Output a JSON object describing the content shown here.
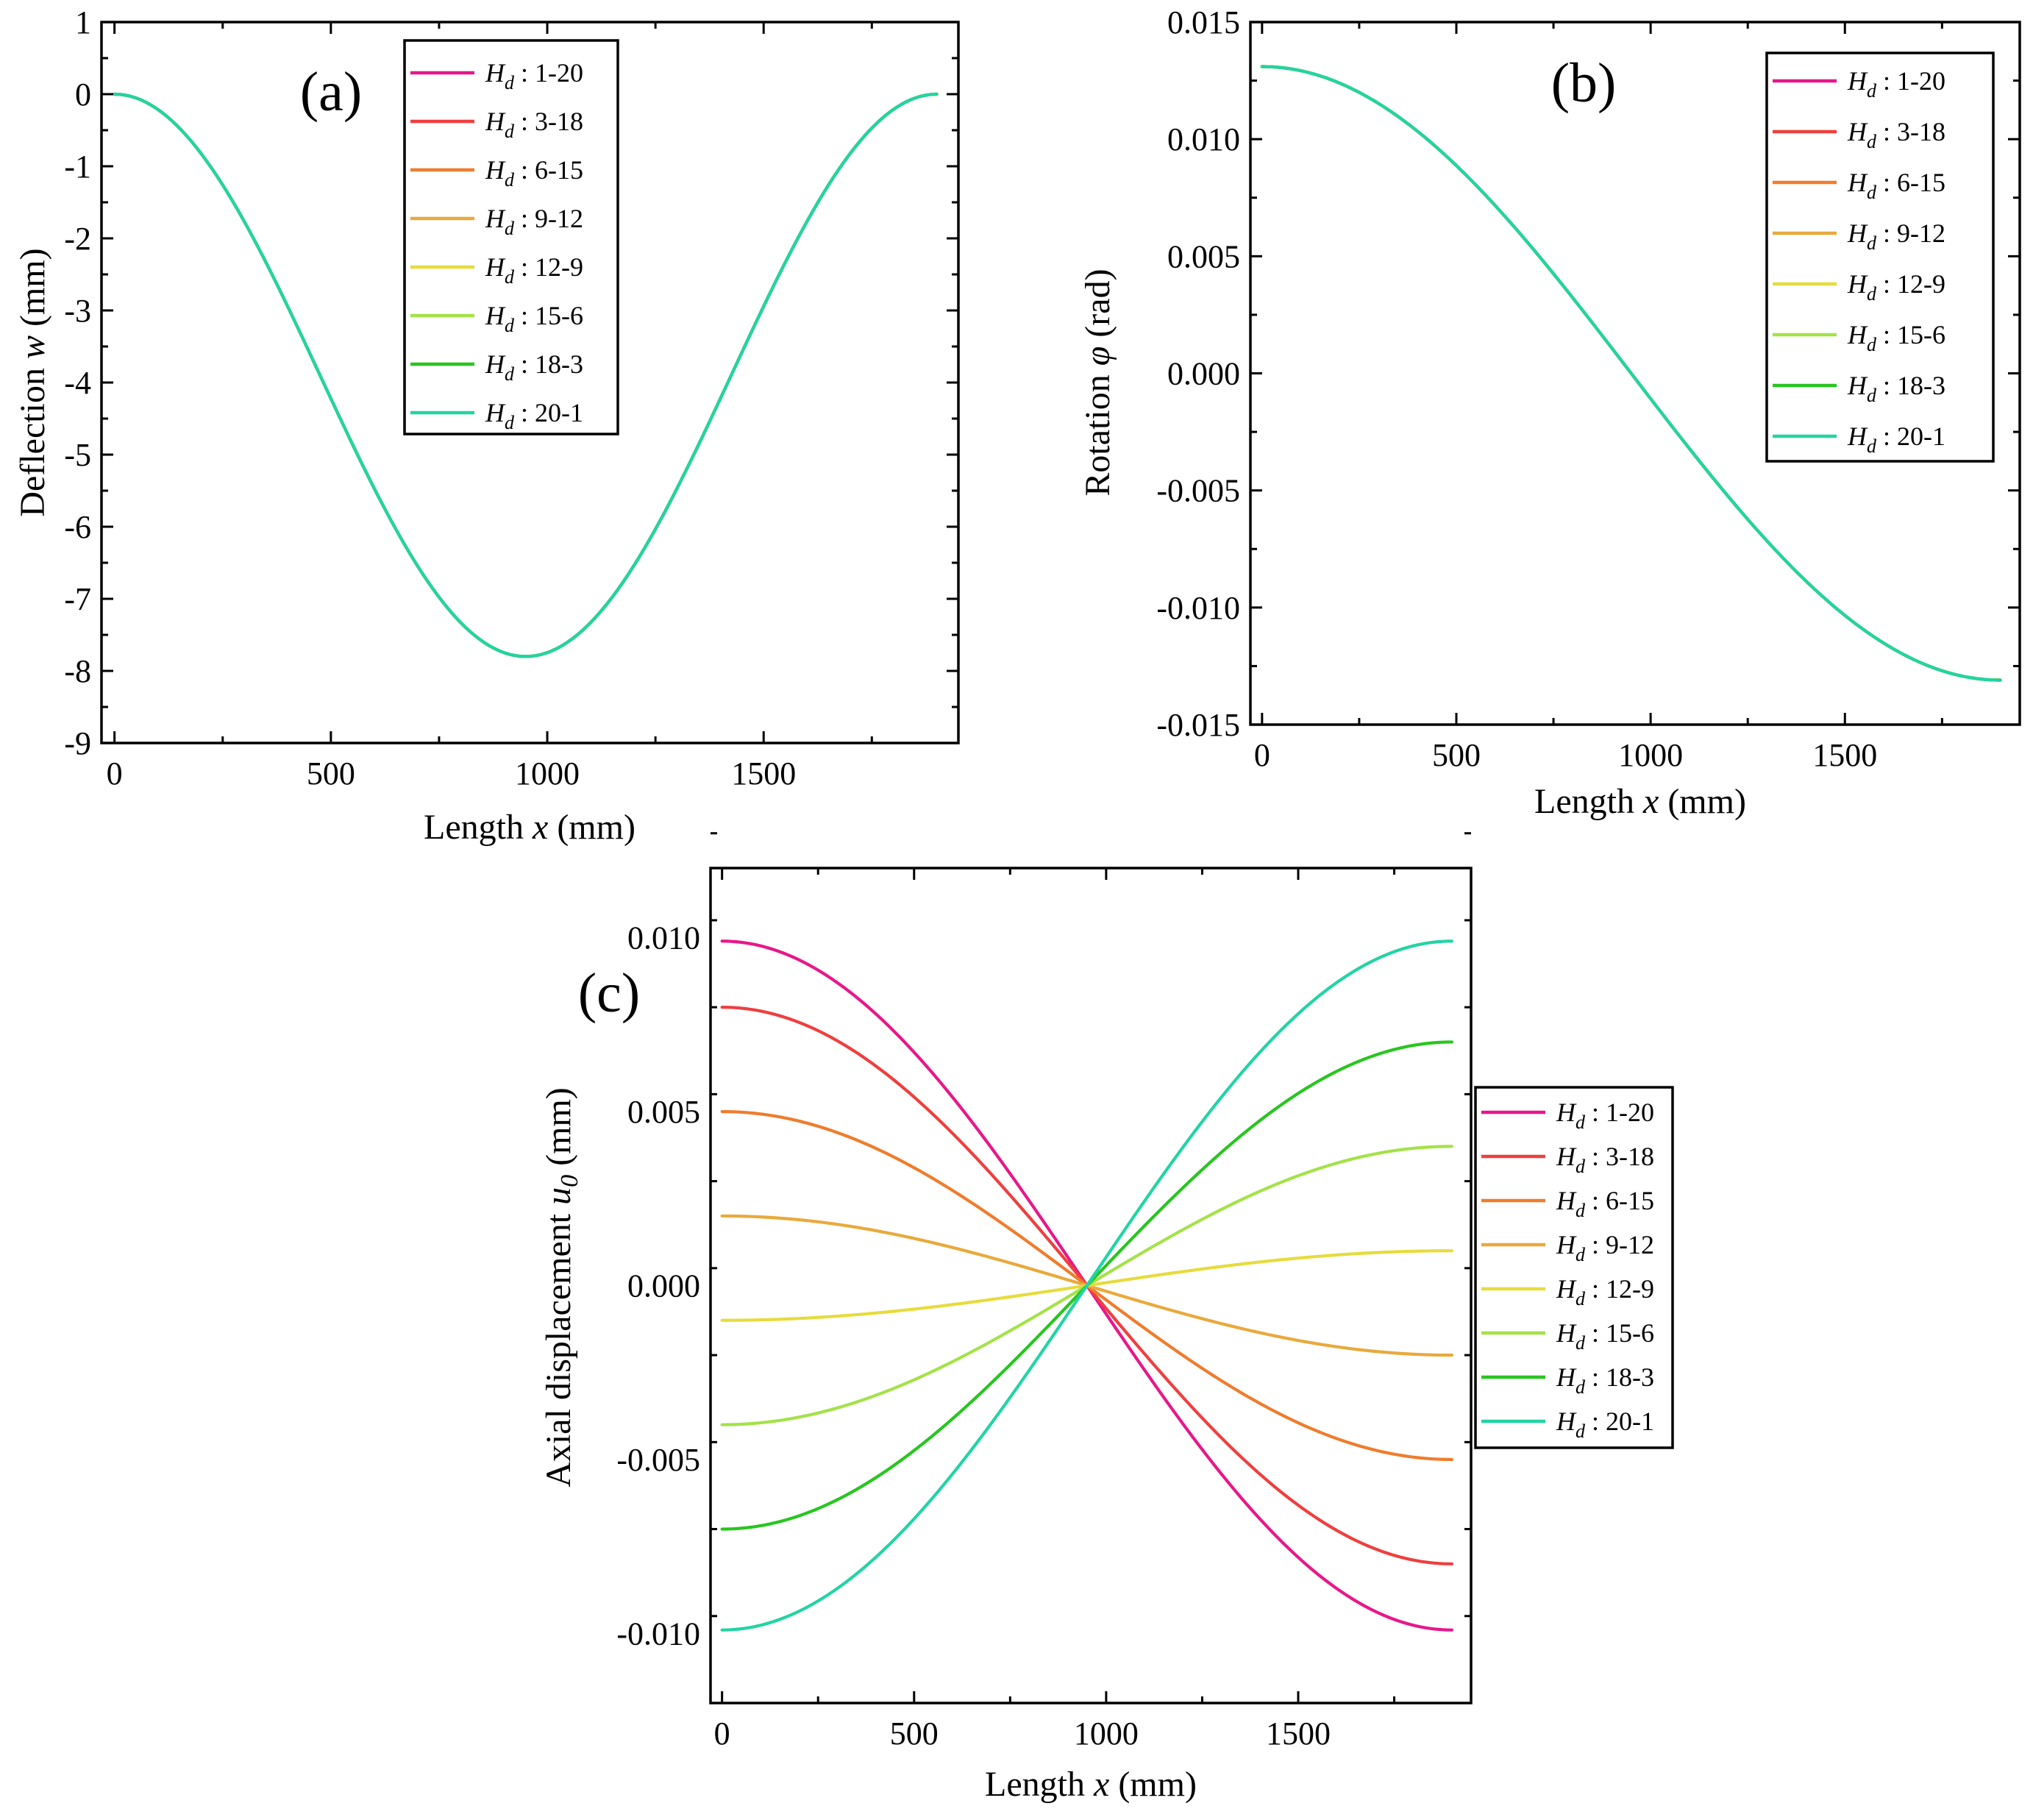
{
  "series_colors": [
    "#e8178a",
    "#ef3f3f",
    "#ee7d2d",
    "#e9a93b",
    "#e6dc3c",
    "#a4e248",
    "#27c61f",
    "#22d4a4"
  ],
  "chart_data": [
    {
      "panel": "(a)",
      "type": "line",
      "xlabel_prefix": "Length ",
      "xlabel_var": "x",
      "xlabel_suffix": " (mm)",
      "ylabel_prefix": "Deflection ",
      "ylabel_var": "w",
      "ylabel_suffix": " (mm)",
      "xlim": [
        -30,
        1950
      ],
      "ylim": [
        -9,
        1
      ],
      "xticks": [
        0,
        500,
        1000,
        1500
      ],
      "xtick_labels": [
        "0",
        "500",
        "1000",
        "1500"
      ],
      "yticks": [
        1,
        0,
        -1,
        -2,
        -3,
        -4,
        -5,
        -6,
        -7,
        -8,
        -9
      ],
      "ytick_labels": [
        "1",
        "0",
        "-1",
        "-2",
        "-3",
        "-4",
        "-5",
        "-6",
        "-7",
        "-8",
        "-9"
      ],
      "legend_position": "top-center",
      "shape": "deflection",
      "x_max": 1900,
      "series": [
        {
          "name_var": "H",
          "name_sub": "d",
          "name_value": " : 1-20",
          "peak": -7.8
        },
        {
          "name_var": "H",
          "name_sub": "d",
          "name_value": " : 3-18",
          "peak": -7.8
        },
        {
          "name_var": "H",
          "name_sub": "d",
          "name_value": " : 6-15",
          "peak": -7.8
        },
        {
          "name_var": "H",
          "name_sub": "d",
          "name_value": " : 9-12",
          "peak": -7.8
        },
        {
          "name_var": "H",
          "name_sub": "d",
          "name_value": " : 12-9",
          "peak": -7.8
        },
        {
          "name_var": "H",
          "name_sub": "d",
          "name_value": " : 15-6",
          "peak": -7.8
        },
        {
          "name_var": "H",
          "name_sub": "d",
          "name_value": " : 18-3",
          "peak": -7.8
        },
        {
          "name_var": "H",
          "name_sub": "d",
          "name_value": " : 20-1",
          "peak": -7.8
        }
      ]
    },
    {
      "panel": "(b)",
      "type": "line",
      "xlabel_prefix": "Length ",
      "xlabel_var": "x",
      "xlabel_suffix": " (mm)",
      "ylabel_prefix": "Rotation ",
      "ylabel_var": "φ",
      "ylabel_suffix": " (rad)",
      "xlim": [
        -30,
        1950
      ],
      "ylim": [
        -0.015,
        0.015
      ],
      "xticks": [
        0,
        500,
        1000,
        1500
      ],
      "xtick_labels": [
        "0",
        "500",
        "1000",
        "1500"
      ],
      "yticks": [
        0.015,
        0.01,
        0.005,
        0,
        -0.005,
        -0.01,
        -0.015
      ],
      "ytick_labels": [
        "0.015",
        "0.010",
        "0.005",
        "0.000",
        "-0.005",
        "-0.010",
        "-0.015"
      ],
      "legend_position": "top-right",
      "shape": "rotation",
      "x_max": 1900,
      "series": [
        {
          "name_var": "H",
          "name_sub": "d",
          "name_value": " : 1-20",
          "peak": 0.0131
        },
        {
          "name_var": "H",
          "name_sub": "d",
          "name_value": " : 3-18",
          "peak": 0.0131
        },
        {
          "name_var": "H",
          "name_sub": "d",
          "name_value": " : 6-15",
          "peak": 0.0131
        },
        {
          "name_var": "H",
          "name_sub": "d",
          "name_value": " : 9-12",
          "peak": 0.0131
        },
        {
          "name_var": "H",
          "name_sub": "d",
          "name_value": " : 12-9",
          "peak": 0.0131
        },
        {
          "name_var": "H",
          "name_sub": "d",
          "name_value": " : 15-6",
          "peak": 0.0131
        },
        {
          "name_var": "H",
          "name_sub": "d",
          "name_value": " : 18-3",
          "peak": 0.0131
        },
        {
          "name_var": "H",
          "name_sub": "d",
          "name_value": " : 20-1",
          "peak": 0.0131
        }
      ]
    },
    {
      "panel": "(c)",
      "type": "line",
      "xlabel_prefix": "Length ",
      "xlabel_var": "x",
      "xlabel_suffix": " (mm)",
      "ylabel_prefix": "Axial displacement ",
      "ylabel_var": "u",
      "ylabel_sub": "0",
      "ylabel_suffix": " (mm)",
      "xlim": [
        -30,
        1950
      ],
      "ylim": [
        -0.012,
        0.012
      ],
      "xticks": [
        0,
        500,
        1000,
        1500
      ],
      "xtick_labels": [
        "0",
        "500",
        "1000",
        "1500"
      ],
      "yticks": [
        0.01,
        0.005,
        0,
        -0.005,
        -0.01
      ],
      "ytick_labels": [
        "0.010",
        "0.005",
        "0.000",
        "-0.005",
        "-0.010"
      ],
      "legend_position": "right-outside",
      "shape": "axial",
      "x_max": 1900,
      "series": [
        {
          "name_var": "H",
          "name_sub": "d",
          "name_value": " : 1-20",
          "peak": 0.0099
        },
        {
          "name_var": "H",
          "name_sub": "d",
          "name_value": " : 3-18",
          "peak": 0.008
        },
        {
          "name_var": "H",
          "name_sub": "d",
          "name_value": " : 6-15",
          "peak": 0.005
        },
        {
          "name_var": "H",
          "name_sub": "d",
          "name_value": " : 9-12",
          "peak": 0.002
        },
        {
          "name_var": "H",
          "name_sub": "d",
          "name_value": " : 12-9",
          "peak": -0.001
        },
        {
          "name_var": "H",
          "name_sub": "d",
          "name_value": " : 15-6",
          "peak": -0.004
        },
        {
          "name_var": "H",
          "name_sub": "d",
          "name_value": " : 18-3",
          "peak": -0.007
        },
        {
          "name_var": "H",
          "name_sub": "d",
          "name_value": " : 20-1",
          "peak": -0.0099
        }
      ]
    }
  ]
}
